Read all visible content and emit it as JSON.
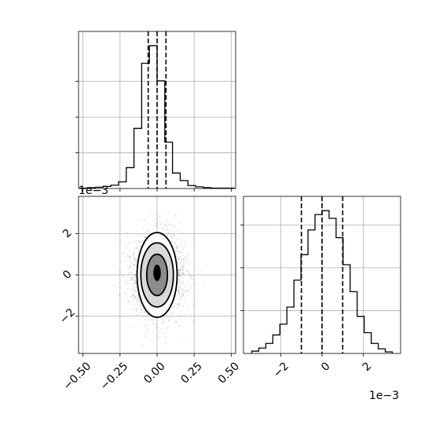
{
  "chart_data": [
    {
      "panel": "marginal-x",
      "type": "histogram",
      "xlim": [
        -0.53,
        0.53
      ],
      "x_ticks": [
        -0.5,
        -0.25,
        0.0,
        0.25,
        0.5
      ],
      "grid": true,
      "bins": {
        "start": -0.52,
        "width": 0.052,
        "counts": [
          1,
          2,
          3,
          5,
          8,
          16,
          50,
          144,
          300,
          342,
          258,
          111,
          37,
          19,
          7,
          4,
          2,
          1,
          1,
          1
        ]
      },
      "quantile_lines": [
        -0.06,
        0.0,
        0.06
      ]
    },
    {
      "panel": "joint",
      "type": "scatter",
      "x_ticks": [
        -0.5,
        -0.25,
        0.0,
        0.25,
        0.5
      ],
      "x_tick_labels": [
        "−0.50",
        "−0.25",
        "0.00",
        "0.25",
        "0.50"
      ],
      "xlim": [
        -0.53,
        0.53
      ],
      "y_ticks": [
        -2,
        0,
        2
      ],
      "y_tick_labels": [
        "−2",
        "0",
        "2"
      ],
      "ylim": [
        -3.8,
        3.8
      ],
      "y_offset_label": "1e−3",
      "grid": true,
      "center": [
        0.0,
        0.0
      ],
      "spread": [
        0.09,
        1.0
      ],
      "contour_levels": [
        {
          "rx": 0.135,
          "ry": 2.05
        },
        {
          "rx": 0.11,
          "ry": 1.55
        },
        {
          "rx": 0.07,
          "ry": 1.0
        }
      ]
    },
    {
      "panel": "marginal-y",
      "type": "histogram",
      "xlim": [
        -3.8,
        3.8
      ],
      "x_ticks": [
        -2,
        0,
        2
      ],
      "x_tick_labels": [
        "−2",
        "0",
        "2"
      ],
      "x_offset_label": "1e−3",
      "grid": true,
      "bins": {
        "start": -3.4,
        "width": 0.34,
        "counts": [
          3,
          7,
          13,
          24,
          38,
          60,
          95,
          128,
          160,
          180,
          185,
          175,
          150,
          115,
          80,
          48,
          27,
          13,
          6,
          2
        ]
      },
      "quantile_lines": [
        -1.0,
        0.0,
        1.0
      ]
    }
  ]
}
